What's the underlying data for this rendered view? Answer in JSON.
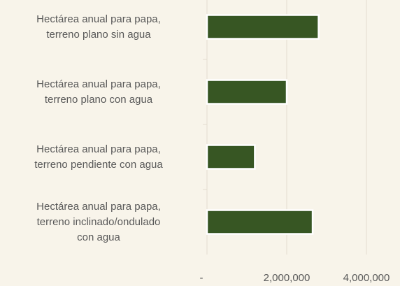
{
  "chart_data": {
    "type": "barh",
    "categories": [
      "Hectárea anual para papa,\nterreno plano sin agua",
      "Hectárea anual para papa,\nterreno plano con agua",
      "Hectárea anual para papa,\nterreno pendiente con agua",
      "Hectárea anual para papa,\nterreno inclinado/ondulado\ncon agua"
    ],
    "values": [
      2800000,
      2000000,
      1200000,
      2650000
    ],
    "color": "#375623",
    "xlim": [
      0,
      4800000
    ],
    "xticks": [
      {
        "value": 0,
        "label": "-"
      },
      {
        "value": 2000000,
        "label": "2,000,000"
      },
      {
        "value": 4000000,
        "label": "4,000,000"
      }
    ],
    "grid": true
  }
}
